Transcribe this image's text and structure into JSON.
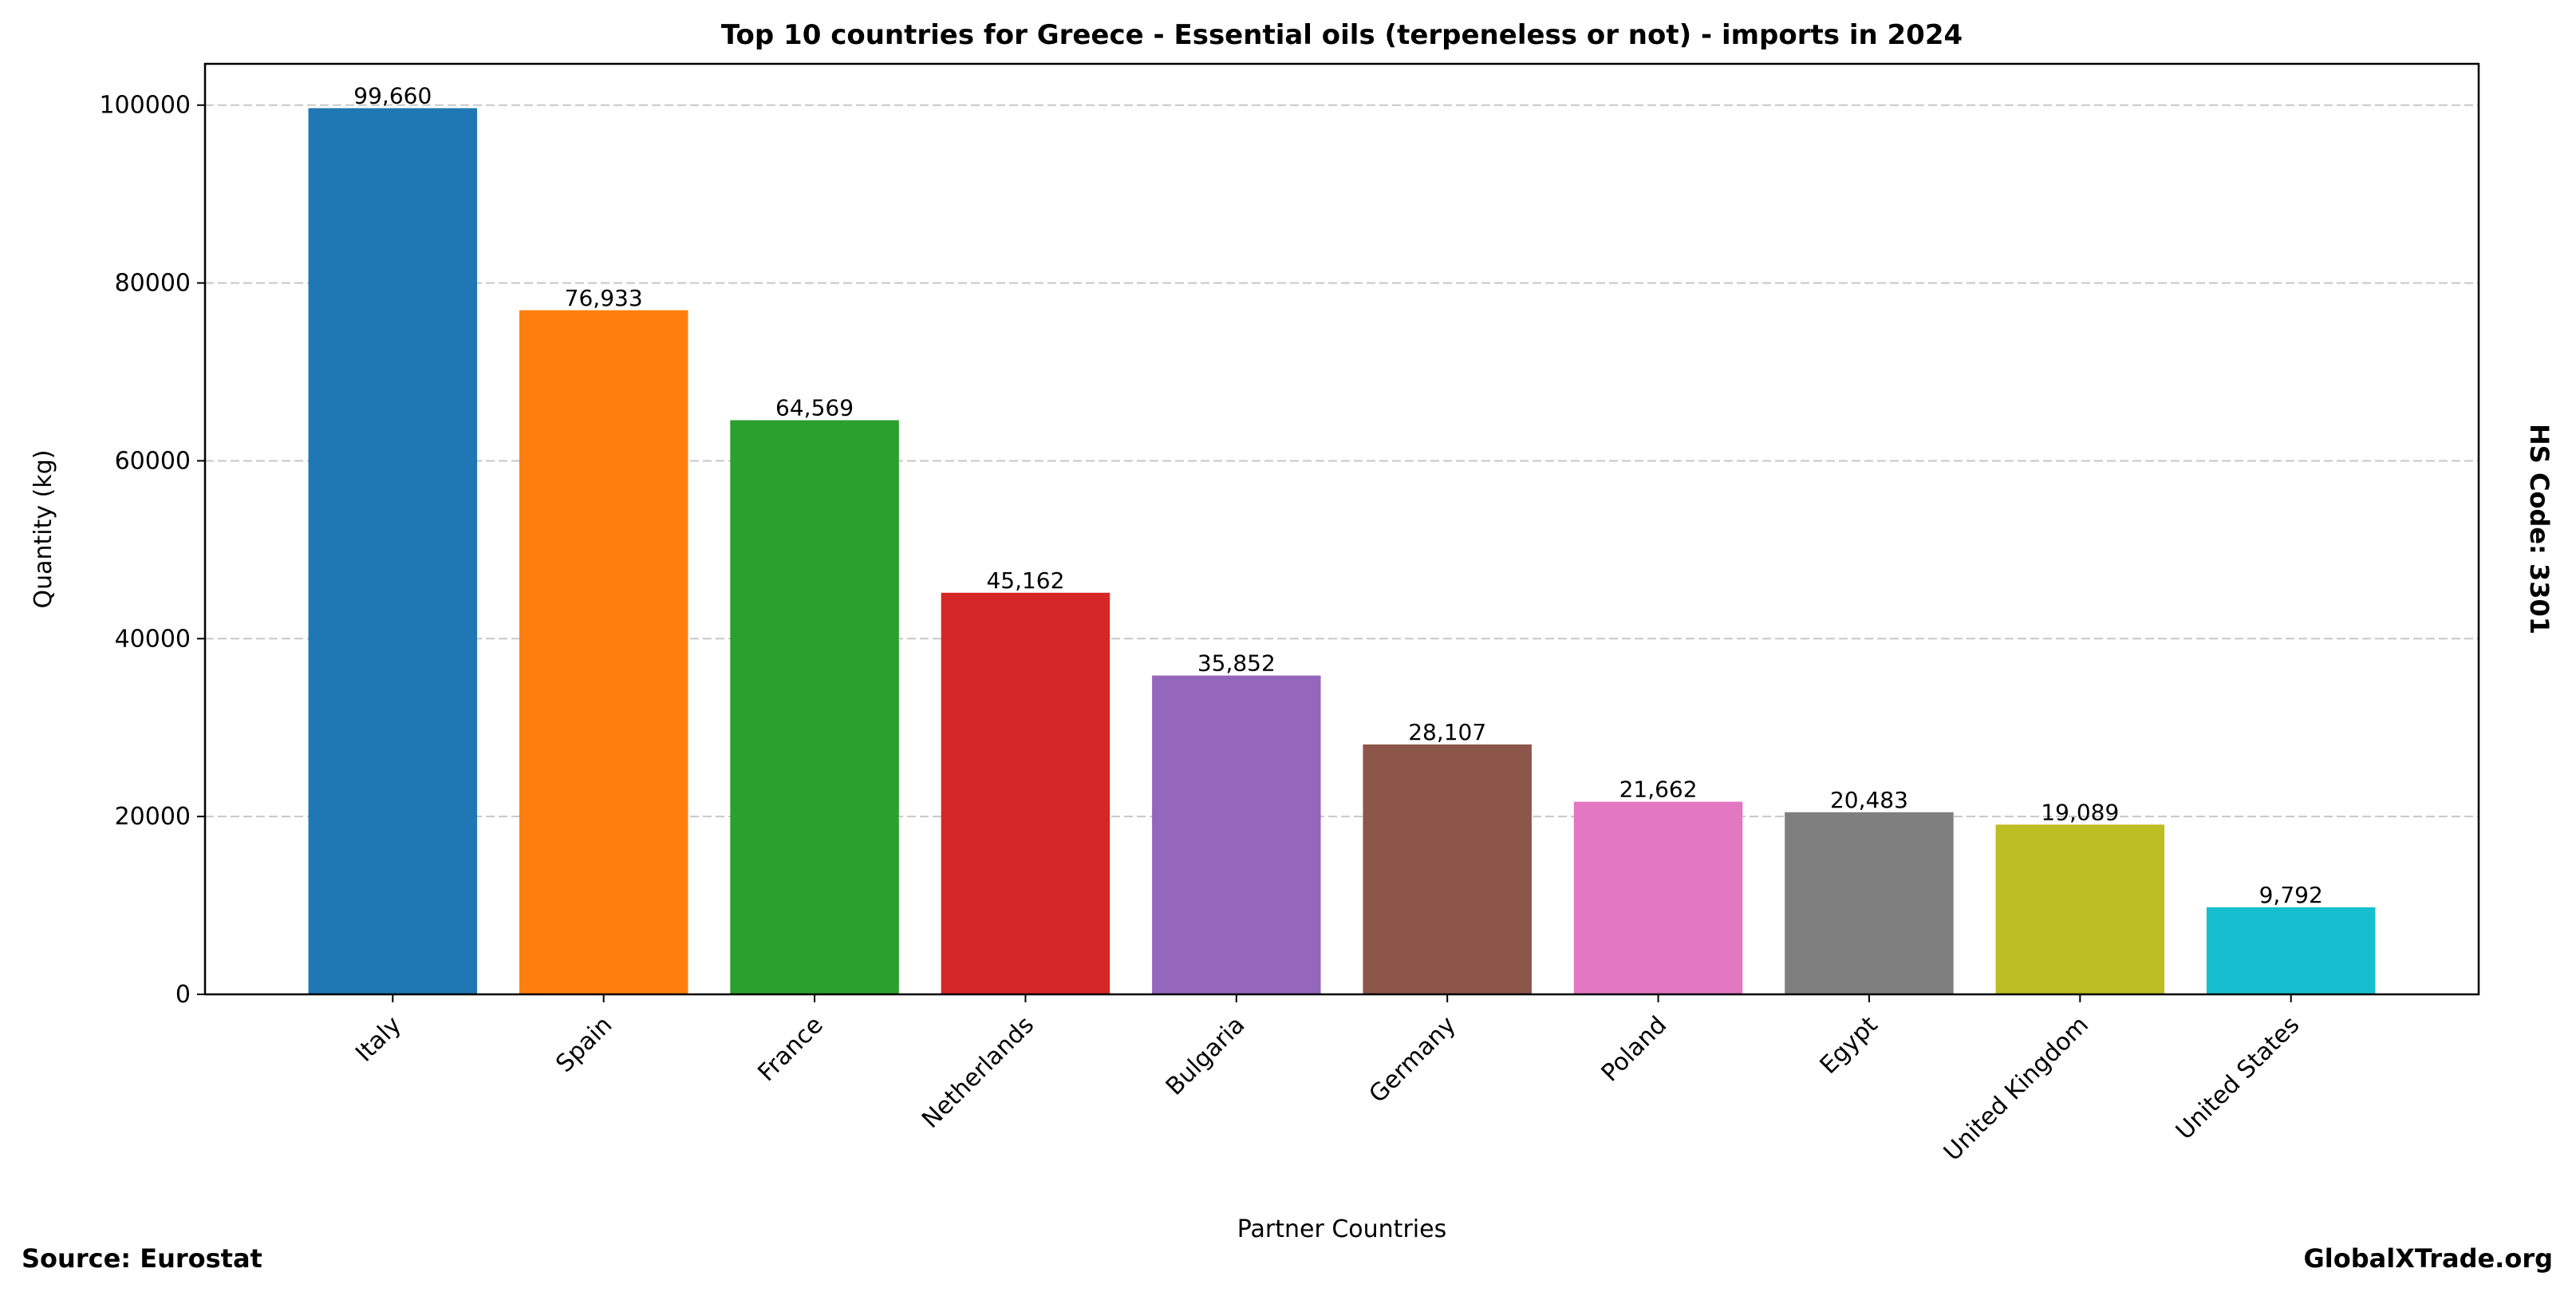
{
  "chart_data": {
    "type": "bar",
    "title": "Top 10 countries for Greece - Essential oils (terpeneless or not) - imports in 2024",
    "xlabel": "Partner Countries",
    "ylabel": "Quantity (kg)",
    "categories": [
      "Italy",
      "Spain",
      "France",
      "Netherlands",
      "Bulgaria",
      "Germany",
      "Poland",
      "Egypt",
      "United Kingdom",
      "United States"
    ],
    "values": [
      99660,
      76933,
      64569,
      45162,
      35852,
      28107,
      21662,
      20483,
      19089,
      9792
    ],
    "value_labels": [
      "99,660",
      "76,933",
      "64,569",
      "45,162",
      "35,852",
      "28,107",
      "21,662",
      "20,483",
      "19,089",
      "9,792"
    ],
    "colors": [
      "#1f77b4",
      "#ff7f0e",
      "#2ca02c",
      "#d62728",
      "#9467bd",
      "#8c564b",
      "#e377c2",
      "#7f7f7f",
      "#bcbd22",
      "#17becf"
    ],
    "ylim": [
      0,
      104643
    ],
    "yticks": [
      0,
      20000,
      40000,
      60000,
      80000,
      100000
    ],
    "ytick_labels": [
      "0",
      "20000",
      "40000",
      "60000",
      "80000",
      "100000"
    ],
    "grid": "y-dashed",
    "legend": "none"
  },
  "annotations": {
    "source": "Source: Eurostat",
    "site": "GlobalXTrade.org",
    "hs_code": "HS Code: 3301"
  }
}
